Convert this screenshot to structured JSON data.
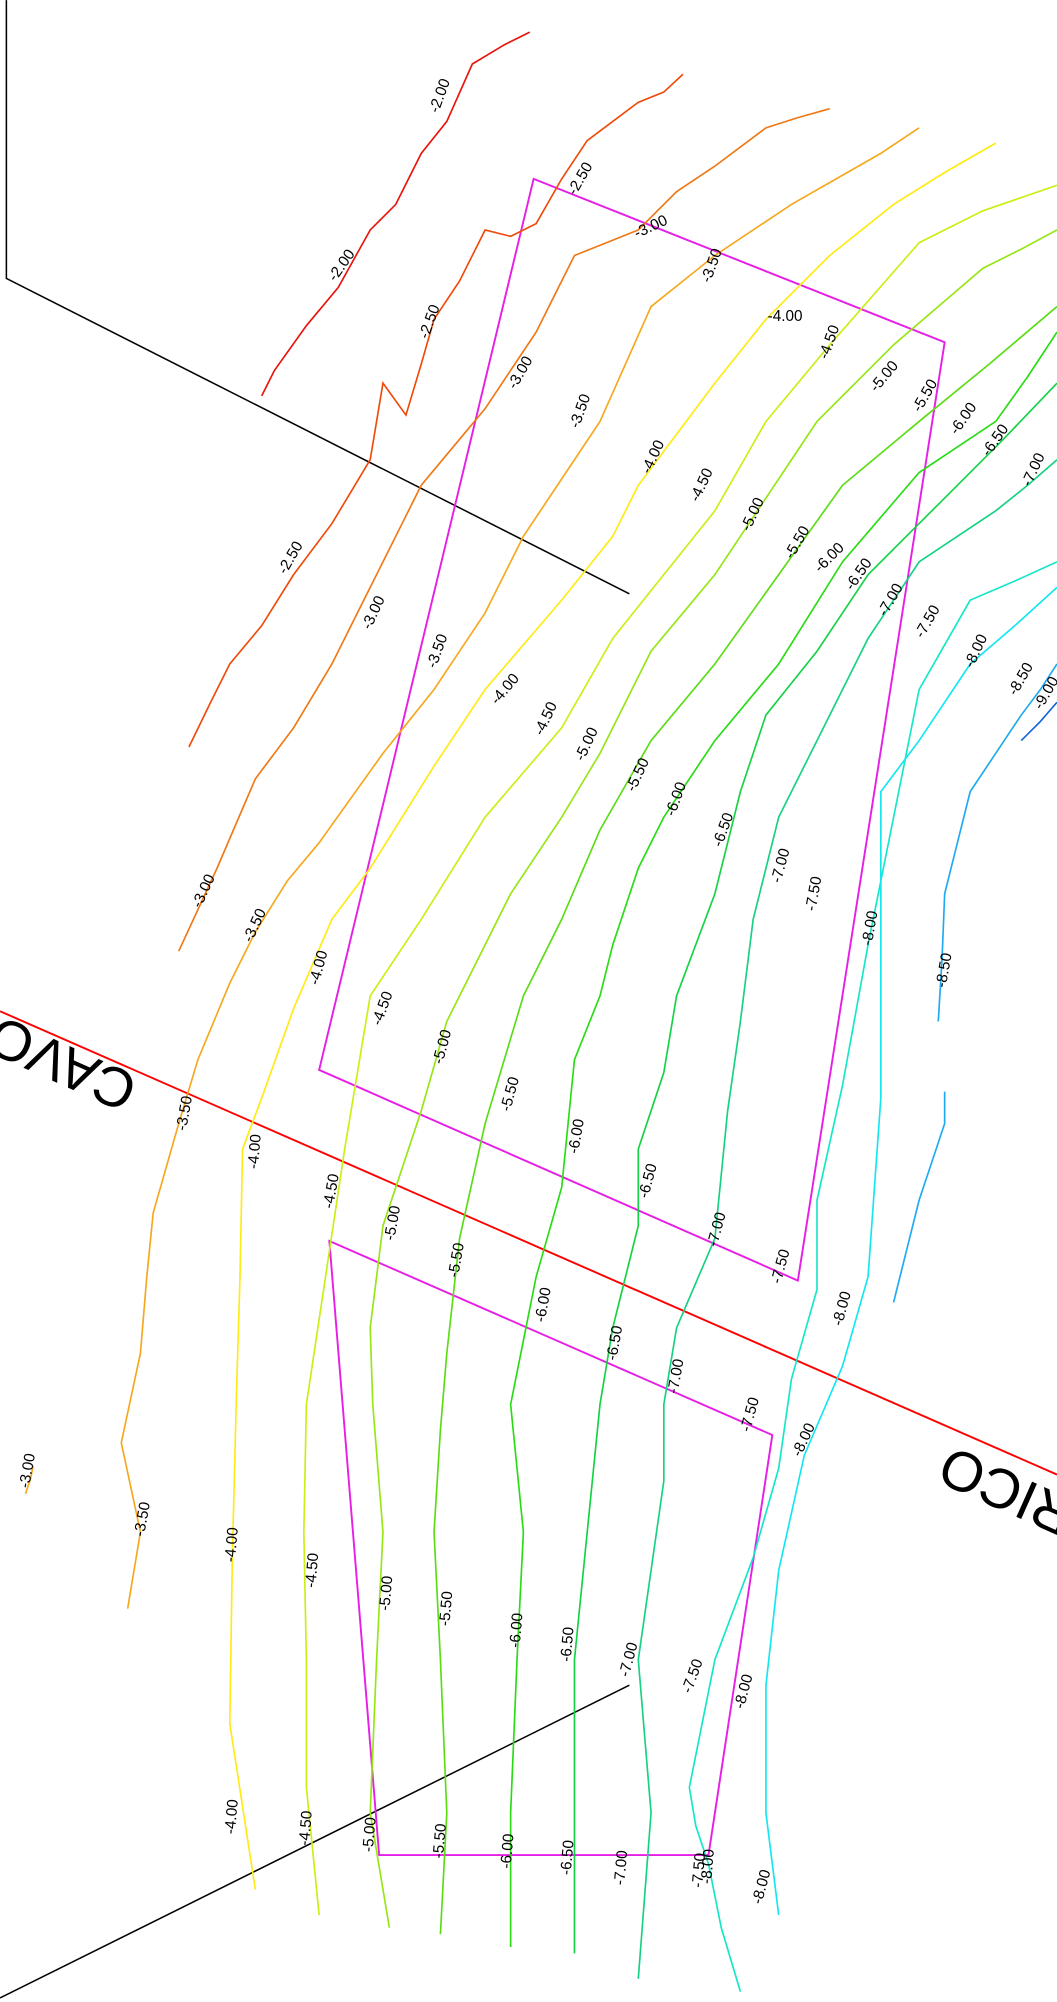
{
  "labels": [
    "-2.00",
    "-2.00",
    "-2.50",
    "-2.50",
    "-2.50",
    "-3.00",
    "-3.00",
    "-3.00",
    "-3.00",
    "-3.00",
    "-3.50",
    "-3.50",
    "-3.50",
    "-3.50",
    "-3.50",
    "-3.50",
    "-4.00",
    "-4.00",
    "-4.00",
    "-4.00",
    "-4.00",
    "-4.00",
    "-4.00",
    "-4.50",
    "-4.50",
    "-4.50",
    "-4.50",
    "-4.50",
    "-4.50",
    "-4.50",
    "-5.00",
    "-5.00",
    "-5.00",
    "-5.00",
    "-5.00",
    "-5.00",
    "-5.00",
    "-5.50",
    "-5.50",
    "-5.50",
    "-5.50",
    "-5.50",
    "-5.50",
    "-5.50",
    "-6.00",
    "-6.00",
    "-6.00",
    "-6.00",
    "-6.00",
    "-6.00",
    "-6.00",
    "-6.50",
    "-6.50",
    "-6.50",
    "-6.50",
    "-6.50",
    "-6.50",
    "-6.50",
    "-7.00",
    "-7.00",
    "-7.00",
    "-7.00",
    "-7.00",
    "-7.00",
    "-7.00",
    "-7.50",
    "-7.50",
    "-7.50",
    "-7.50",
    "-7.50",
    "-7.50",
    "-8.00",
    "-8.00",
    "-8.00",
    "-8.00",
    "-8.00",
    "-8.00",
    "-8.50",
    "-8.50",
    "-9.00",
    "-8.00"
  ],
  "cables": [
    "CAVO",
    "RICO"
  ]
}
